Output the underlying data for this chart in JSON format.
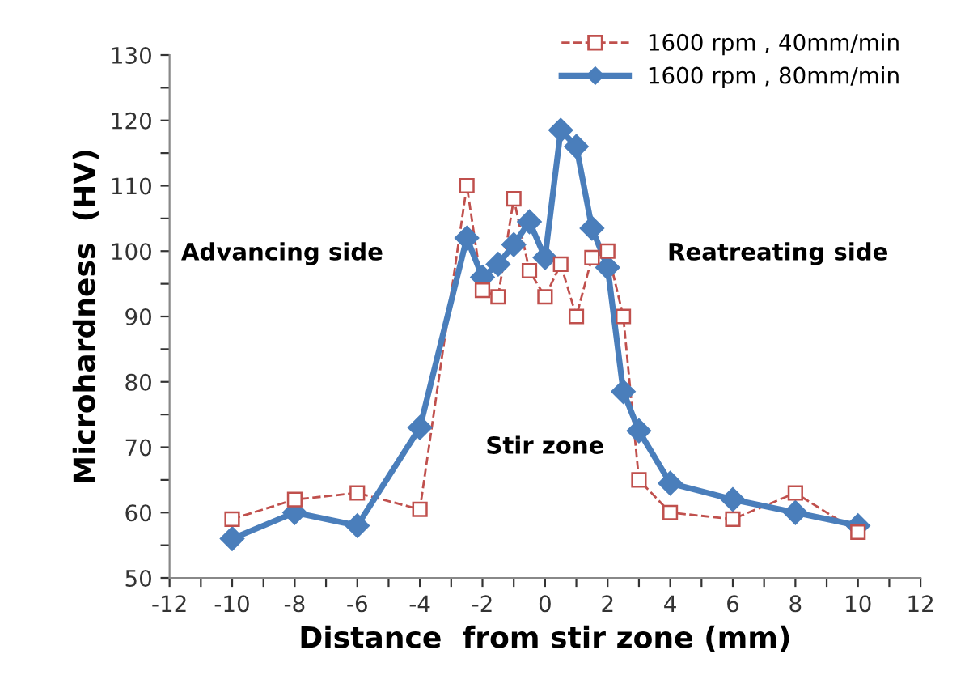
{
  "chart_data": {
    "type": "line",
    "xlabel": "Distance  from stir zone (mm)",
    "ylabel": "Microhardness  (HV)",
    "xlim": [
      -12,
      12
    ],
    "ylim": [
      50,
      130
    ],
    "xticks": [
      -12,
      {
        "value": -11,
        "label": null
      },
      -10,
      {
        "value": -9,
        "label": null
      },
      -8,
      {
        "value": -7,
        "label": null
      },
      -6,
      {
        "value": -5,
        "label": null
      },
      -4,
      {
        "value": -3,
        "label": null
      },
      -2,
      {
        "value": -1,
        "label": null
      },
      0,
      {
        "value": 1,
        "label": null
      },
      2,
      {
        "value": 3,
        "label": null
      },
      4,
      {
        "value": 5,
        "label": null
      },
      6,
      {
        "value": 7,
        "label": null
      },
      8,
      {
        "value": 9,
        "label": null
      },
      10,
      {
        "value": 11,
        "label": null
      },
      12
    ],
    "yticks": [
      50,
      {
        "value": 55,
        "label": null
      },
      60,
      {
        "value": 65,
        "label": null
      },
      70,
      {
        "value": 75,
        "label": null
      },
      80,
      {
        "value": 85,
        "label": null
      },
      90,
      {
        "value": 95,
        "label": null
      },
      100,
      {
        "value": 105,
        "label": null
      },
      110,
      {
        "value": 115,
        "label": null
      },
      120,
      {
        "value": 125,
        "label": null
      },
      130
    ],
    "grid": false,
    "legend": "top right",
    "series": [
      {
        "name": "1600 rpm , 40mm/min",
        "color": "#c0504d",
        "marker": "square",
        "line_style": "dashed",
        "x": [
          -10,
          -8,
          -6,
          -4,
          -2.5,
          -2,
          -1.5,
          -1,
          -0.5,
          0,
          0.5,
          1,
          1.5,
          2,
          2.5,
          3,
          4,
          6,
          8,
          10
        ],
        "values": [
          59,
          62,
          63,
          60.5,
          110,
          94,
          93,
          108,
          97,
          93,
          98,
          90,
          99,
          100,
          90,
          65,
          60,
          59,
          63,
          57
        ]
      },
      {
        "name": "1600 rpm , 80mm/min",
        "color": "#4a7ebb",
        "marker": "diamond",
        "line_style": "solid",
        "x": [
          -10,
          -8,
          -6,
          -4,
          -2.5,
          -2,
          -1.5,
          -1,
          -0.5,
          0,
          0.5,
          1,
          1.5,
          2,
          2.5,
          3,
          4,
          6,
          8,
          10
        ],
        "values": [
          56,
          60,
          58,
          73,
          102,
          96,
          98,
          101,
          104.5,
          99,
          118.5,
          116,
          103.5,
          97.5,
          78.5,
          72.5,
          64.5,
          62,
          60,
          58
        ]
      }
    ],
    "annotations": [
      "Advancing side",
      "Reatreating side",
      "Stir zone"
    ]
  }
}
